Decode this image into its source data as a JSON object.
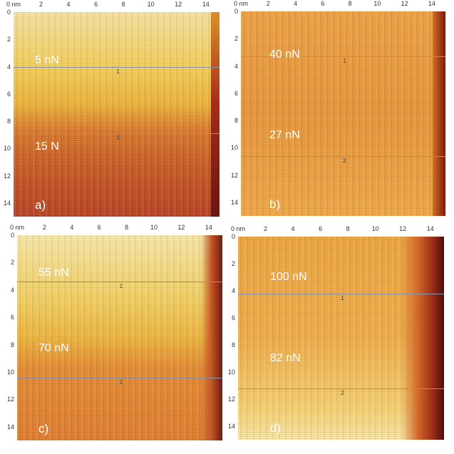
{
  "axis": {
    "x_ticks": [
      "0 nm",
      "2",
      "4",
      "6",
      "8",
      "10",
      "12",
      "14"
    ],
    "y_ticks": [
      "0",
      "2",
      "4",
      "6",
      "8",
      "10",
      "12",
      "14"
    ]
  },
  "panels": [
    {
      "id": "a",
      "label": "a)",
      "forces": [
        "5 nN",
        "15 N"
      ],
      "markers": [
        "1",
        "2"
      ]
    },
    {
      "id": "b",
      "label": "b)",
      "forces": [
        "40 nN",
        "27 nN"
      ],
      "markers": [
        "1",
        "2"
      ]
    },
    {
      "id": "c",
      "label": "c)",
      "forces": [
        "55 nN",
        "70 nN"
      ],
      "markers": [
        "1",
        "2"
      ]
    },
    {
      "id": "d",
      "label": "d)",
      "forces": [
        "100 nN",
        "82 nN"
      ],
      "markers": [
        "1",
        "2"
      ]
    }
  ]
}
